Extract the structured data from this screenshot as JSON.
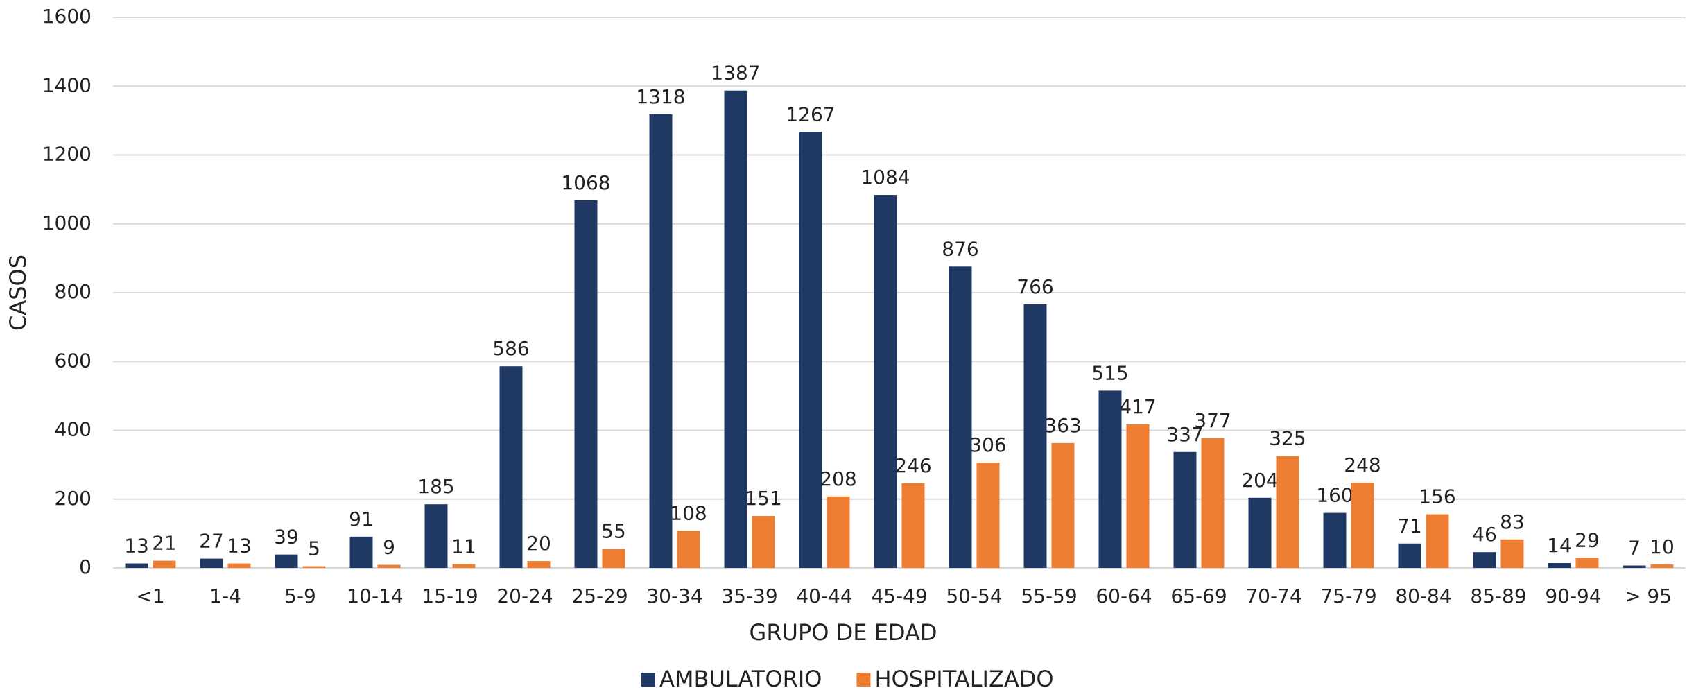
{
  "chart_data": {
    "type": "bar",
    "xlabel": "GRUPO DE EDAD",
    "ylabel": "CASOS",
    "categories": [
      "<1",
      "1-4",
      "5-9",
      "10-14",
      "15-19",
      "20-24",
      "25-29",
      "30-34",
      "35-39",
      "40-44",
      "45-49",
      "50-54",
      "55-59",
      "60-64",
      "65-69",
      "70-74",
      "75-79",
      "80-84",
      "85-89",
      "90-94",
      "> 95"
    ],
    "series": [
      {
        "name": "AMBULATORIO",
        "color": "#1f3864",
        "values": [
          13,
          27,
          39,
          91,
          185,
          586,
          1068,
          1318,
          1387,
          1267,
          1084,
          876,
          766,
          515,
          337,
          204,
          160,
          71,
          46,
          14,
          7
        ]
      },
      {
        "name": "HOSPITALIZADO",
        "color": "#ed7d31",
        "values": [
          21,
          13,
          5,
          9,
          11,
          20,
          55,
          108,
          151,
          208,
          246,
          306,
          363,
          417,
          377,
          325,
          248,
          156,
          83,
          29,
          10
        ]
      }
    ],
    "ylim": [
      0,
      1600
    ],
    "yticks": [
      0,
      200,
      400,
      600,
      800,
      1000,
      1200,
      1400,
      1600
    ],
    "grid": true,
    "legend": "bottom"
  }
}
